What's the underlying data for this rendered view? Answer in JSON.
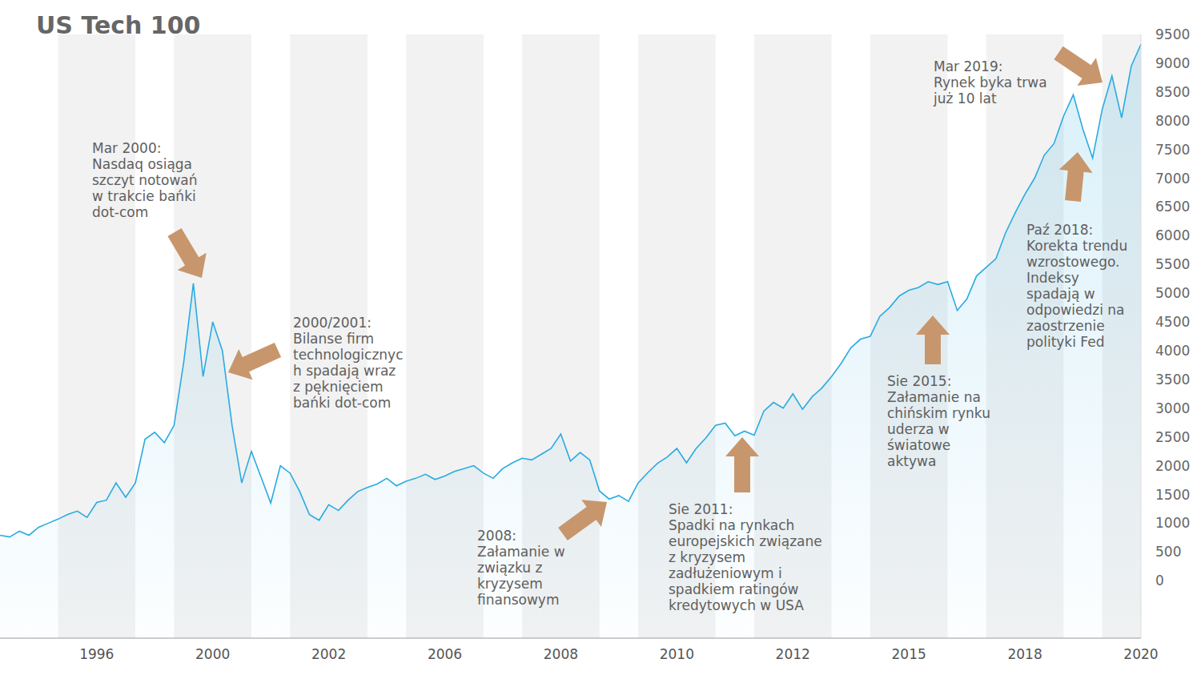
{
  "chart_data": {
    "type": "area",
    "title": "US Tech 100",
    "color": "#29abe2",
    "grid": false,
    "categories": [
      null,
      null,
      null,
      null,
      null,
      null,
      null,
      null,
      null,
      null,
      "1996",
      null,
      null,
      null,
      null,
      null,
      null,
      null,
      null,
      null,
      null,
      null,
      "2000",
      null,
      null,
      null,
      null,
      null,
      null,
      null,
      null,
      null,
      null,
      null,
      "2002",
      null,
      null,
      null,
      null,
      null,
      null,
      null,
      null,
      null,
      null,
      null,
      "2006",
      null,
      null,
      null,
      null,
      null,
      null,
      null,
      null,
      null,
      null,
      null,
      "2008",
      null,
      null,
      null,
      null,
      null,
      null,
      null,
      null,
      null,
      null,
      null,
      "2010",
      null,
      null,
      null,
      null,
      null,
      null,
      null,
      null,
      null,
      null,
      null,
      "2012",
      null,
      null,
      null,
      null,
      null,
      null,
      null,
      null,
      null,
      null,
      null,
      "2015",
      null,
      null,
      null,
      null,
      null,
      null,
      null,
      null,
      null,
      null,
      null,
      "2018",
      null,
      null,
      null,
      null,
      null,
      null,
      null,
      null,
      null,
      null,
      null,
      "2020"
    ],
    "values": [
      790,
      760,
      860,
      790,
      930,
      1000,
      1070,
      1150,
      1210,
      1100,
      1360,
      1400,
      1700,
      1450,
      1700,
      2460,
      2580,
      2400,
      2700,
      3800,
      5170,
      3550,
      4500,
      4000,
      2700,
      1700,
      2250,
      1800,
      1350,
      2000,
      1870,
      1550,
      1150,
      1050,
      1320,
      1220,
      1400,
      1550,
      1620,
      1680,
      1780,
      1650,
      1730,
      1780,
      1850,
      1760,
      1820,
      1900,
      1950,
      2000,
      1870,
      1780,
      1950,
      2050,
      2130,
      2100,
      2200,
      2300,
      2550,
      2080,
      2230,
      2100,
      1560,
      1420,
      1480,
      1380,
      1700,
      1880,
      2040,
      2150,
      2300,
      2050,
      2300,
      2480,
      2700,
      2740,
      2520,
      2600,
      2530,
      2950,
      3100,
      3000,
      3250,
      2980,
      3200,
      3350,
      3550,
      3780,
      4050,
      4200,
      4250,
      4600,
      4750,
      4950,
      5050,
      5100,
      5200,
      5150,
      5200,
      4700,
      4900,
      5300,
      5450,
      5600,
      6050,
      6400,
      6720,
      7000,
      7400,
      7600,
      8080,
      8450,
      7850,
      7350,
      8200,
      8780,
      8050,
      8950,
      9330
    ],
    "ylim": [
      -1000,
      9500
    ],
    "yticks": [
      0,
      500,
      1000,
      1500,
      2000,
      2500,
      3000,
      3500,
      4000,
      4500,
      5000,
      5500,
      6000,
      6500,
      7000,
      7500,
      8000,
      8500,
      9000,
      9500
    ],
    "annotations": [
      "Mar 2000:\nNasdaq osiąga\nszczyt notowań\nw trakcie bańki\ndot-com",
      "2000/2001:\nBilanse firm\ntechnologicznyc\nh spadają wraz\nz pęknięciem\nbańki dot-com",
      "2008:\nZałamanie w\nzwiązku z\nkryzysem\nfinansowym",
      "Sie 2011:\nSpadki na rynkach\neuropejskich związane\nz kryzysem\nzadłużeniowym i\nspadkiem ratingów\nkredytowych w USA",
      "Sie 2015:\nZałamanie na\nchińskim rynku\nuderza w\nświatowe\naktywa",
      "Paź 2018:\nKorekta trendu\nwzrostowego.\nIndeksy\nspadają w\nodpowiedzi na\nzaostrzenie\npolityki Fed",
      "Mar 2019:\nRynek byka trwa\njuż 10 lat"
    ]
  }
}
